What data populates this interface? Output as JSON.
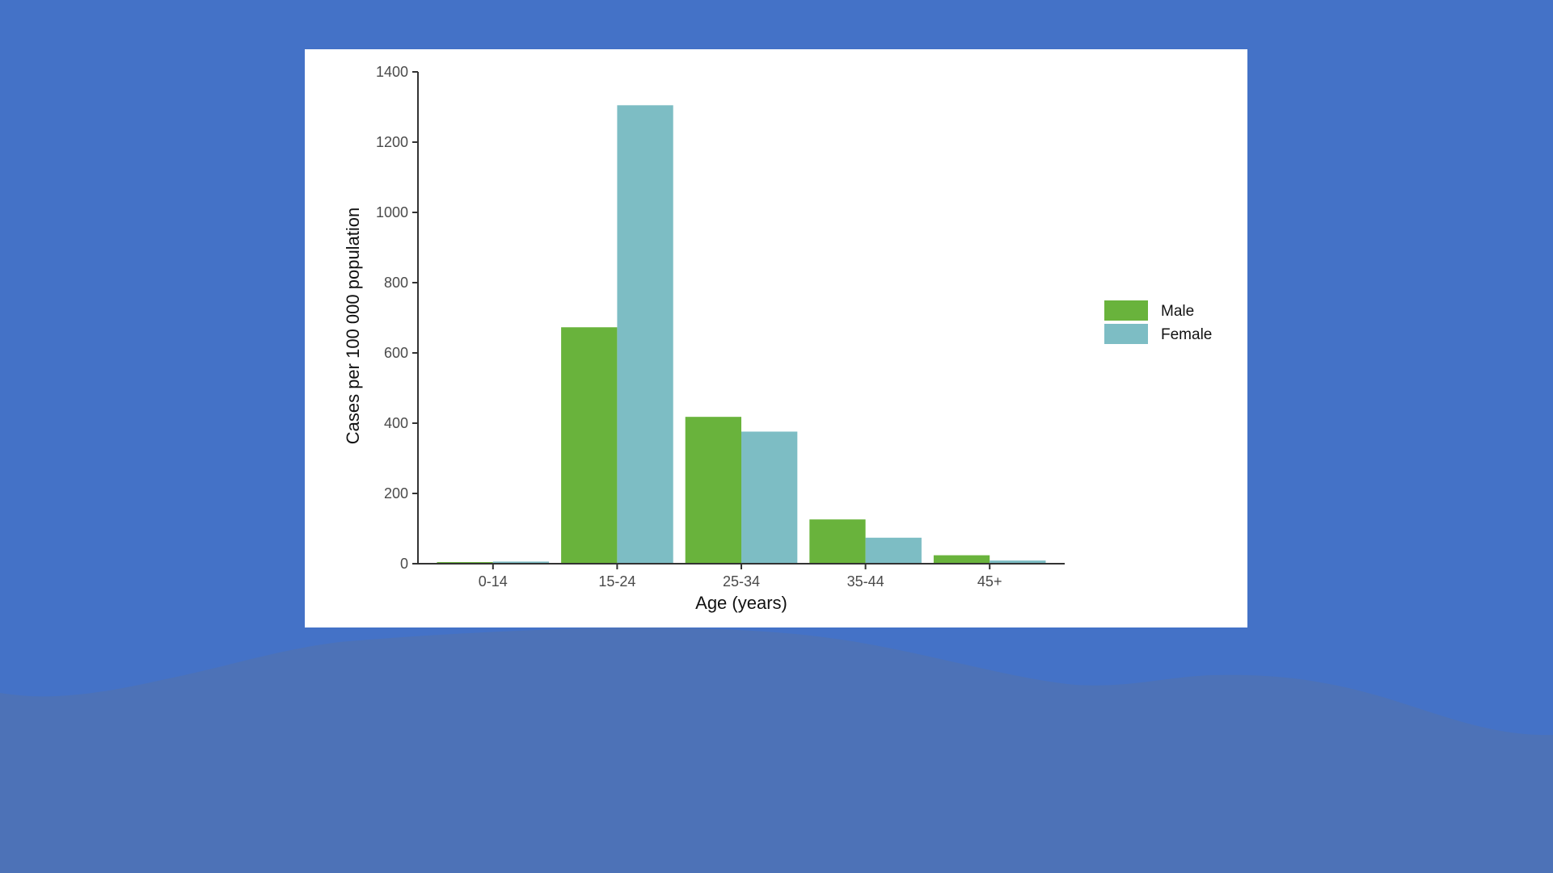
{
  "colors": {
    "background": "#4472c7",
    "wave": "#4d72b7",
    "panel": "#ffffff",
    "axis": "#333333"
  },
  "chart_data": {
    "type": "bar",
    "title": "",
    "xlabel": "Age (years)",
    "ylabel": "Cases per 100 000 population",
    "categories": [
      "0-14",
      "15-24",
      "25-34",
      "35-44",
      "45+"
    ],
    "series": [
      {
        "name": "Male",
        "color": "#69b33c",
        "values": [
          2,
          673,
          418,
          126,
          24
        ]
      },
      {
        "name": "Female",
        "color": "#7dbdc4",
        "values": [
          6,
          1305,
          376,
          74,
          9
        ]
      }
    ],
    "ylim": [
      0,
      1400
    ],
    "yticks": [
      0,
      200,
      400,
      600,
      800,
      1000,
      1200,
      1400
    ],
    "grid": false,
    "legend_position": "right"
  }
}
